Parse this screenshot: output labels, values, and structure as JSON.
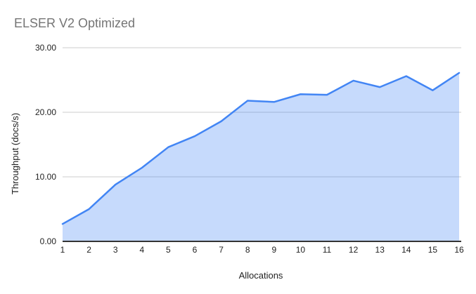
{
  "chart_data": {
    "type": "area",
    "title": "ELSER V2 Optimized",
    "xlabel": "Allocations",
    "ylabel": "Throughput (docs/s)",
    "categories": [
      "1",
      "2",
      "3",
      "4",
      "5",
      "6",
      "7",
      "8",
      "9",
      "10",
      "11",
      "12",
      "13",
      "14",
      "15",
      "16"
    ],
    "values": [
      2.7,
      5.0,
      8.8,
      11.4,
      14.6,
      16.3,
      18.6,
      21.8,
      21.6,
      22.8,
      22.7,
      24.9,
      23.9,
      25.6,
      23.4,
      26.1
    ],
    "ylim": [
      0,
      30
    ],
    "yticks": [
      0,
      10,
      20,
      30
    ],
    "ytick_labels": [
      "0.00",
      "10.00",
      "20.00",
      "30.00"
    ],
    "grid": true,
    "legend": "none",
    "colors": {
      "line": "#4285f4",
      "fill": "rgba(66,133,244,0.3)",
      "gridline": "#cccccc",
      "axis_line": "#333333",
      "title_text": "#757575",
      "tick_text": "#222222",
      "axis_title_text": "#222222",
      "background": "#ffffff"
    }
  }
}
